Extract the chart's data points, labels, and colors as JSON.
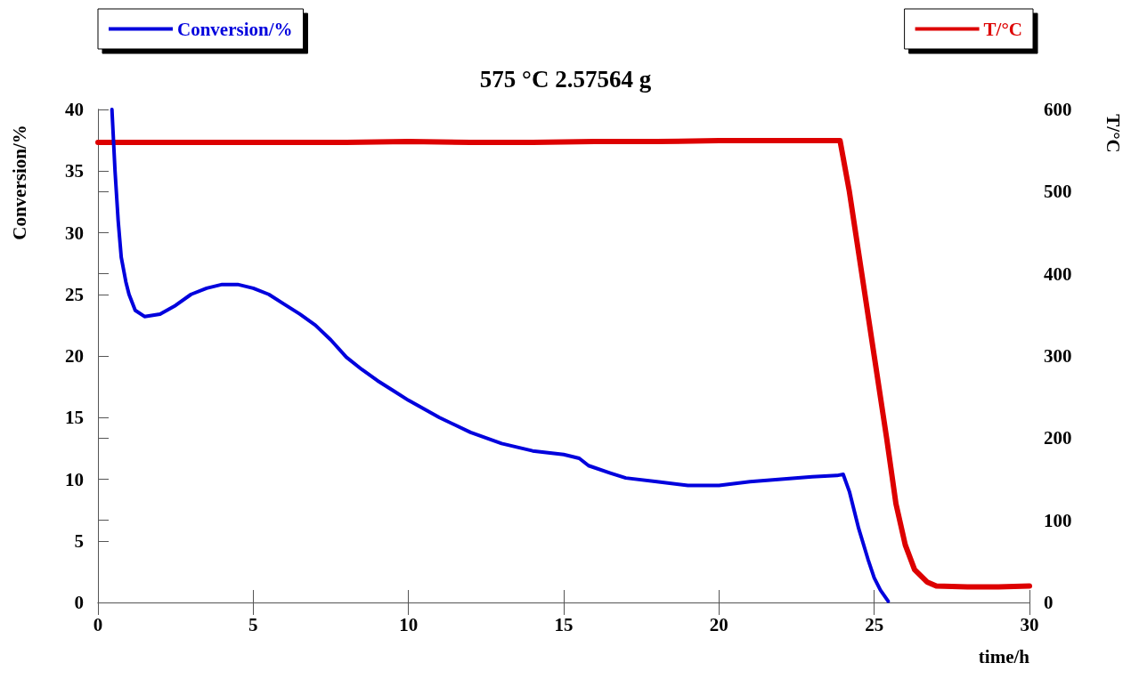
{
  "chart_data": {
    "type": "line",
    "title": "575 °C 2.57564 g",
    "xlabel": "time/h",
    "ylabel": "Conversion/%",
    "y2label": "T/°C",
    "xlim": [
      0,
      30
    ],
    "xticks": [
      0,
      5,
      10,
      15,
      20,
      25,
      30
    ],
    "ylim": [
      0,
      40
    ],
    "yticks": [
      0,
      5,
      10,
      15,
      20,
      25,
      30,
      35,
      40
    ],
    "y2lim": [
      0,
      600
    ],
    "y2ticks": [
      0,
      100,
      200,
      300,
      400,
      500,
      600
    ],
    "grid": false,
    "legend": "top",
    "marker": "none",
    "line_style": "solid",
    "series": [
      {
        "name": "Conversion/%",
        "color": "#0000dd",
        "x": [
          0.45,
          0.55,
          0.65,
          0.75,
          0.9,
          1.0,
          1.2,
          1.5,
          2.0,
          2.5,
          3.0,
          3.5,
          4.0,
          4.5,
          5.0,
          5.5,
          6.0,
          6.5,
          7.0,
          7.5,
          8.0,
          8.5,
          9.0,
          9.5,
          10,
          11,
          12,
          13,
          14,
          15,
          15.5,
          15.8,
          16.5,
          17,
          18,
          19,
          20,
          21,
          22,
          23,
          23.8,
          24.0,
          24.2,
          24.5,
          24.8,
          25.0,
          25.2,
          25.45
        ],
        "values": [
          40,
          35,
          31,
          28,
          26,
          25,
          23.7,
          23.2,
          23.4,
          24.1,
          25.0,
          25.5,
          25.8,
          25.8,
          25.5,
          25.0,
          24.2,
          23.4,
          22.5,
          21.3,
          19.9,
          18.9,
          18.0,
          17.2,
          16.4,
          15.0,
          13.8,
          12.9,
          12.3,
          12.0,
          11.7,
          11.1,
          10.5,
          10.1,
          9.8,
          9.5,
          9.5,
          9.8,
          10.0,
          10.2,
          10.3,
          10.4,
          9,
          6,
          3.5,
          2,
          1,
          0.1
        ]
      },
      {
        "name": "T/°C",
        "color": "#dd0000",
        "axis": "y2",
        "x": [
          0,
          2,
          4,
          6,
          8,
          10,
          12,
          14,
          16,
          18,
          20,
          22,
          23.9,
          24.2,
          24.6,
          25.0,
          25.4,
          25.7,
          26.0,
          26.3,
          26.7,
          27,
          28,
          29,
          30
        ],
        "values": [
          560,
          560,
          560,
          560,
          560,
          561,
          560,
          560,
          561,
          561,
          562,
          562,
          562,
          500,
          400,
          300,
          200,
          120,
          70,
          40,
          25,
          20,
          19,
          19,
          20
        ]
      }
    ]
  }
}
